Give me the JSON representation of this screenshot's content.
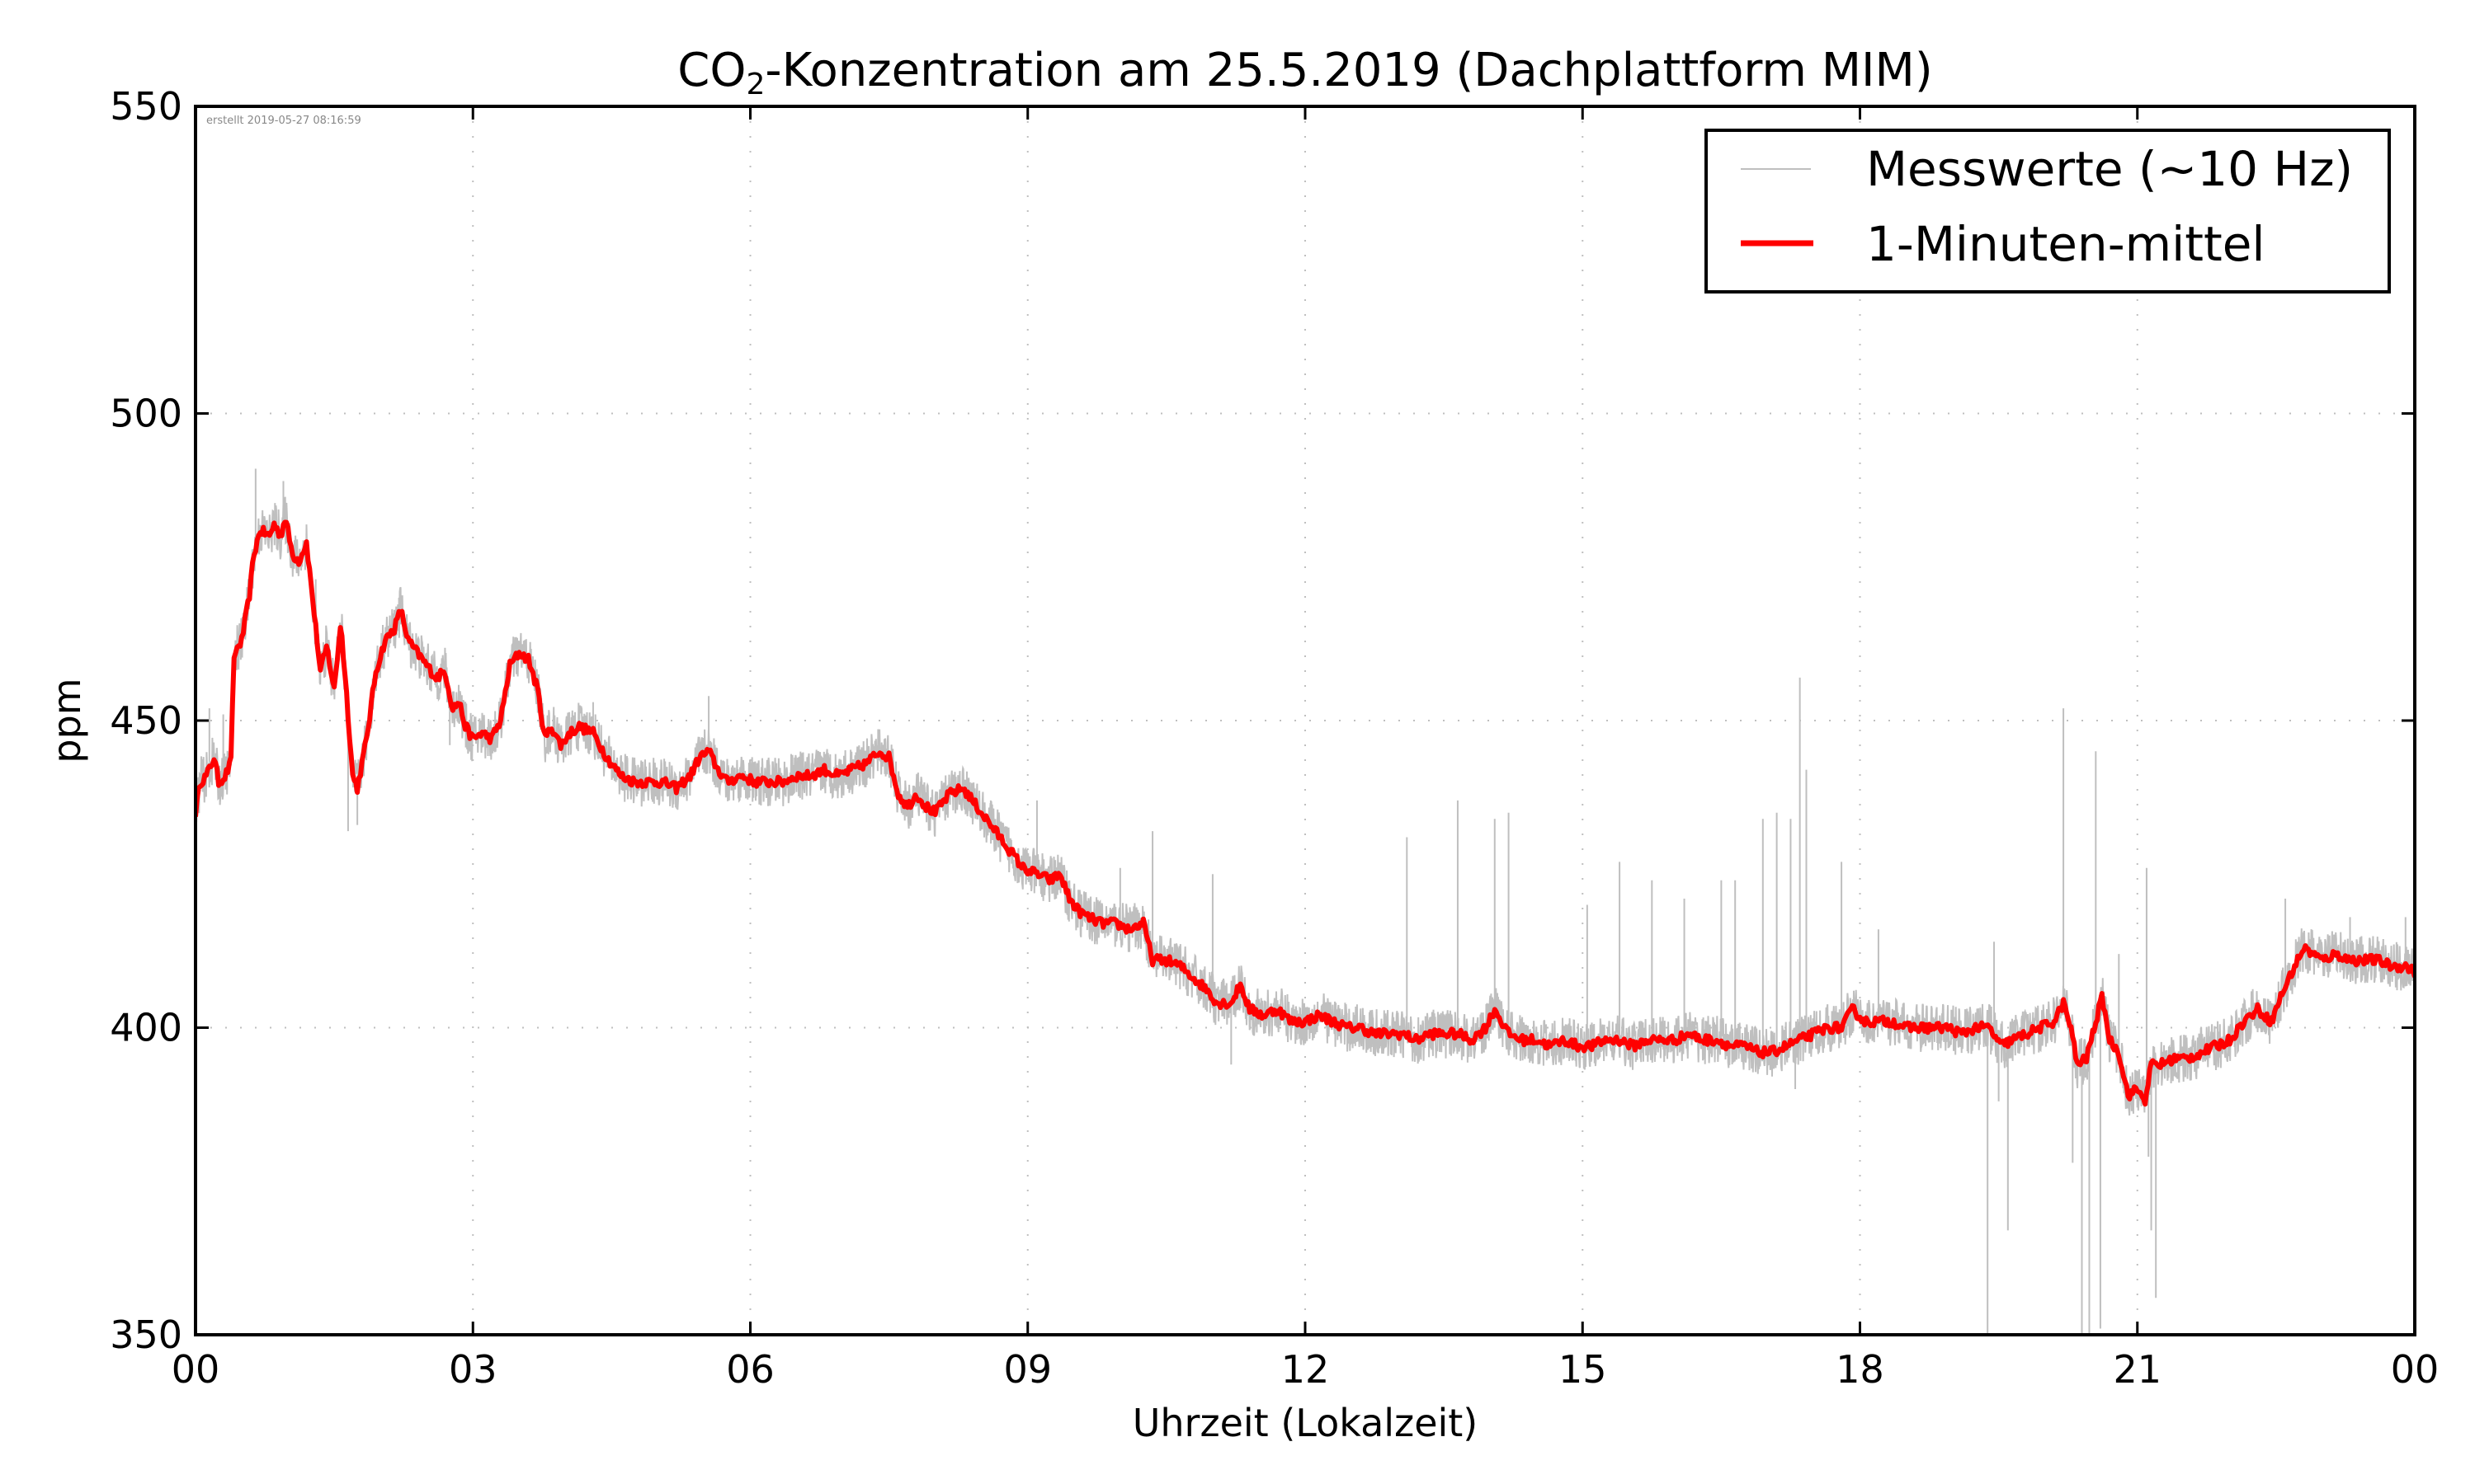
{
  "chart_data": {
    "type": "line",
    "title": "CO₂-Konzentration am 25.5.2019 (Dachplattform MIM)",
    "title_parts": {
      "prefix": "CO",
      "subscript": "2",
      "suffix": "-Konzentration am 25.5.2019 (Dachplattform MIM)"
    },
    "xlabel": "Uhrzeit (Lokalzeit)",
    "ylabel": "ppm",
    "xlim_hours": [
      0,
      24
    ],
    "ylim": [
      350,
      550
    ],
    "x_ticks": [
      {
        "hour": 0,
        "label": "00"
      },
      {
        "hour": 3,
        "label": "03"
      },
      {
        "hour": 6,
        "label": "06"
      },
      {
        "hour": 9,
        "label": "09"
      },
      {
        "hour": 12,
        "label": "12"
      },
      {
        "hour": 15,
        "label": "15"
      },
      {
        "hour": 18,
        "label": "18"
      },
      {
        "hour": 21,
        "label": "21"
      },
      {
        "hour": 24,
        "label": "00"
      }
    ],
    "y_ticks": [
      350,
      400,
      450,
      500,
      550
    ],
    "grid": true,
    "legend_position": "top-right",
    "created_stamp": "erstellt 2019-05-27 08:16:59",
    "series": [
      {
        "name": "Messwerte (~10 Hz)",
        "color": "#bfbfbf",
        "style": "raw",
        "noise_ppm": 2.5,
        "spikes": [
          [
            0.15,
            452
          ],
          [
            0.3,
            451
          ],
          [
            0.65,
            491
          ],
          [
            0.95,
            489
          ],
          [
            1.3,
            473
          ],
          [
            1.65,
            432
          ],
          [
            1.75,
            433
          ],
          [
            2.2,
            470
          ],
          [
            2.75,
            446
          ],
          [
            3.55,
            463
          ],
          [
            4.3,
            453
          ],
          [
            5.55,
            454
          ],
          [
            7.45,
            447
          ],
          [
            8.6,
            437
          ],
          [
            9.1,
            437
          ],
          [
            10.0,
            426
          ],
          [
            10.35,
            432
          ],
          [
            11.0,
            425
          ],
          [
            11.2,
            394
          ],
          [
            12.0,
            398
          ],
          [
            13.1,
            431
          ],
          [
            13.65,
            437
          ],
          [
            14.05,
            434
          ],
          [
            14.2,
            435
          ],
          [
            15.05,
            420
          ],
          [
            15.4,
            427
          ],
          [
            15.75,
            424
          ],
          [
            16.1,
            421
          ],
          [
            16.5,
            424
          ],
          [
            16.65,
            424
          ],
          [
            16.95,
            434
          ],
          [
            17.1,
            435
          ],
          [
            17.25,
            434
          ],
          [
            17.35,
            457
          ],
          [
            17.42,
            442
          ],
          [
            17.3,
            390
          ],
          [
            17.8,
            427
          ],
          [
            18.2,
            416
          ],
          [
            19.38,
            350
          ],
          [
            19.45,
            414
          ],
          [
            19.5,
            388
          ],
          [
            19.6,
            367
          ],
          [
            20.2,
            452
          ],
          [
            20.3,
            378
          ],
          [
            20.4,
            350
          ],
          [
            20.48,
            350
          ],
          [
            20.55,
            445
          ],
          [
            20.6,
            351
          ],
          [
            20.8,
            412
          ],
          [
            21.0,
            387
          ],
          [
            21.12,
            379
          ],
          [
            21.15,
            367
          ],
          [
            21.2,
            356
          ],
          [
            21.1,
            426
          ],
          [
            22.6,
            421
          ],
          [
            23.3,
            418
          ],
          [
            23.9,
            418
          ]
        ]
      },
      {
        "name": "1-Minuten-mittel",
        "color": "#ff0000",
        "style": "mean",
        "points": [
          [
            0.0,
            435
          ],
          [
            0.05,
            440
          ],
          [
            0.12,
            441
          ],
          [
            0.2,
            444
          ],
          [
            0.25,
            440
          ],
          [
            0.32,
            441
          ],
          [
            0.38,
            443
          ],
          [
            0.42,
            461
          ],
          [
            0.5,
            463
          ],
          [
            0.58,
            470
          ],
          [
            0.63,
            477
          ],
          [
            0.7,
            481
          ],
          [
            0.8,
            480
          ],
          [
            0.85,
            482
          ],
          [
            0.92,
            480
          ],
          [
            0.97,
            483
          ],
          [
            1.05,
            477
          ],
          [
            1.12,
            476
          ],
          [
            1.2,
            479
          ],
          [
            1.28,
            468
          ],
          [
            1.35,
            458
          ],
          [
            1.42,
            462
          ],
          [
            1.5,
            455
          ],
          [
            1.57,
            466
          ],
          [
            1.63,
            455
          ],
          [
            1.7,
            441
          ],
          [
            1.75,
            439
          ],
          [
            1.85,
            447
          ],
          [
            1.95,
            458
          ],
          [
            2.05,
            463
          ],
          [
            2.15,
            465
          ],
          [
            2.22,
            468
          ],
          [
            2.3,
            463
          ],
          [
            2.4,
            461
          ],
          [
            2.5,
            459
          ],
          [
            2.6,
            457
          ],
          [
            2.7,
            458
          ],
          [
            2.78,
            452
          ],
          [
            2.85,
            453
          ],
          [
            2.92,
            449
          ],
          [
            3.0,
            447
          ],
          [
            3.1,
            448
          ],
          [
            3.2,
            447
          ],
          [
            3.3,
            450
          ],
          [
            3.4,
            459
          ],
          [
            3.5,
            461
          ],
          [
            3.6,
            460
          ],
          [
            3.7,
            455
          ],
          [
            3.78,
            447
          ],
          [
            3.85,
            449
          ],
          [
            3.95,
            446
          ],
          [
            4.05,
            448
          ],
          [
            4.15,
            449
          ],
          [
            4.3,
            448
          ],
          [
            4.45,
            444
          ],
          [
            4.6,
            441
          ],
          [
            4.75,
            440
          ],
          [
            4.9,
            440
          ],
          [
            5.05,
            440
          ],
          [
            5.2,
            439
          ],
          [
            5.35,
            441
          ],
          [
            5.45,
            444
          ],
          [
            5.55,
            445
          ],
          [
            5.65,
            442
          ],
          [
            5.75,
            440
          ],
          [
            5.9,
            441
          ],
          [
            6.05,
            440
          ],
          [
            6.2,
            440
          ],
          [
            6.35,
            440
          ],
          [
            6.5,
            441
          ],
          [
            6.65,
            441
          ],
          [
            6.8,
            442
          ],
          [
            6.95,
            441
          ],
          [
            7.1,
            442
          ],
          [
            7.25,
            443
          ],
          [
            7.4,
            445
          ],
          [
            7.5,
            444
          ],
          [
            7.6,
            438
          ],
          [
            7.7,
            436
          ],
          [
            7.8,
            438
          ],
          [
            7.9,
            436
          ],
          [
            8.0,
            435
          ],
          [
            8.15,
            438
          ],
          [
            8.3,
            439
          ],
          [
            8.45,
            436
          ],
          [
            8.6,
            433
          ],
          [
            8.75,
            430
          ],
          [
            8.85,
            428
          ],
          [
            8.95,
            426
          ],
          [
            9.1,
            425
          ],
          [
            9.25,
            424
          ],
          [
            9.35,
            425
          ],
          [
            9.45,
            421
          ],
          [
            9.55,
            419
          ],
          [
            9.65,
            418
          ],
          [
            9.8,
            417
          ],
          [
            9.95,
            417
          ],
          [
            10.1,
            416
          ],
          [
            10.25,
            417
          ],
          [
            10.35,
            411
          ],
          [
            10.5,
            411
          ],
          [
            10.65,
            410
          ],
          [
            10.8,
            408
          ],
          [
            10.95,
            406
          ],
          [
            11.05,
            404
          ],
          [
            11.2,
            404
          ],
          [
            11.3,
            407
          ],
          [
            11.4,
            403
          ],
          [
            11.55,
            402
          ],
          [
            11.7,
            403
          ],
          [
            11.85,
            401
          ],
          [
            12.0,
            401
          ],
          [
            12.15,
            402
          ],
          [
            12.3,
            401
          ],
          [
            12.45,
            400
          ],
          [
            12.6,
            400
          ],
          [
            12.75,
            399
          ],
          [
            12.9,
            399
          ],
          [
            13.05,
            399
          ],
          [
            13.2,
            398
          ],
          [
            13.35,
            399
          ],
          [
            13.5,
            399
          ],
          [
            13.65,
            399
          ],
          [
            13.8,
            398
          ],
          [
            13.95,
            400
          ],
          [
            14.05,
            403
          ],
          [
            14.2,
            399
          ],
          [
            14.35,
            398
          ],
          [
            14.5,
            398
          ],
          [
            14.65,
            397
          ],
          [
            14.8,
            398
          ],
          [
            14.95,
            397
          ],
          [
            15.1,
            397
          ],
          [
            15.25,
            398
          ],
          [
            15.4,
            398
          ],
          [
            15.55,
            397
          ],
          [
            15.7,
            398
          ],
          [
            15.85,
            398
          ],
          [
            16.0,
            398
          ],
          [
            16.15,
            399
          ],
          [
            16.3,
            398
          ],
          [
            16.45,
            398
          ],
          [
            16.6,
            397
          ],
          [
            16.75,
            397
          ],
          [
            16.9,
            396
          ],
          [
            17.05,
            396
          ],
          [
            17.2,
            397
          ],
          [
            17.35,
            398
          ],
          [
            17.5,
            399
          ],
          [
            17.65,
            400
          ],
          [
            17.8,
            400
          ],
          [
            17.92,
            403
          ],
          [
            18.05,
            401
          ],
          [
            18.2,
            401
          ],
          [
            18.35,
            401
          ],
          [
            18.5,
            400
          ],
          [
            18.65,
            400
          ],
          [
            18.8,
            400
          ],
          [
            18.95,
            400
          ],
          [
            19.1,
            399
          ],
          [
            19.25,
            400
          ],
          [
            19.4,
            400
          ],
          [
            19.52,
            397
          ],
          [
            19.65,
            398
          ],
          [
            19.8,
            399
          ],
          [
            19.95,
            400
          ],
          [
            20.1,
            401
          ],
          [
            20.2,
            404
          ],
          [
            20.28,
            400
          ],
          [
            20.35,
            394
          ],
          [
            20.45,
            395
          ],
          [
            20.55,
            401
          ],
          [
            20.62,
            405
          ],
          [
            20.7,
            398
          ],
          [
            20.8,
            396
          ],
          [
            20.9,
            389
          ],
          [
            21.0,
            390
          ],
          [
            21.08,
            388
          ],
          [
            21.15,
            394
          ],
          [
            21.25,
            394
          ],
          [
            21.4,
            395
          ],
          [
            21.55,
            395
          ],
          [
            21.7,
            396
          ],
          [
            21.85,
            397
          ],
          [
            22.0,
            398
          ],
          [
            22.15,
            401
          ],
          [
            22.3,
            403
          ],
          [
            22.45,
            401
          ],
          [
            22.55,
            405
          ],
          [
            22.7,
            410
          ],
          [
            22.8,
            413
          ],
          [
            22.9,
            412
          ],
          [
            23.0,
            411
          ],
          [
            23.15,
            412
          ],
          [
            23.3,
            411
          ],
          [
            23.45,
            411
          ],
          [
            23.6,
            411
          ],
          [
            23.75,
            410
          ],
          [
            23.9,
            410
          ],
          [
            24.0,
            409
          ]
        ]
      }
    ]
  }
}
